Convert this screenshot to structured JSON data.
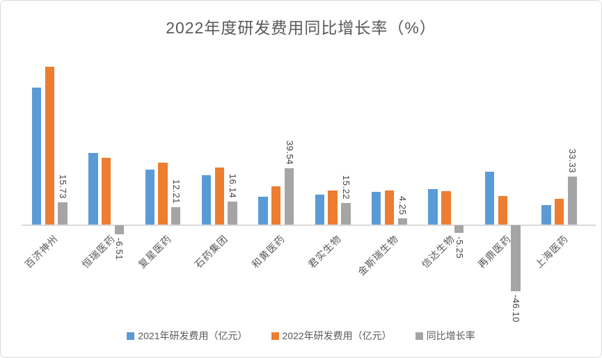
{
  "chart_data": {
    "type": "bar",
    "title": "2022年度研发费用同比增长率（%）",
    "categories": [
      "百济神州",
      "恒瑞医药",
      "复星医药",
      "石药集团",
      "和黄医药",
      "君实生物",
      "金斯瑞生物",
      "信达生物",
      "再鼎医药",
      "上海医药"
    ],
    "series": [
      {
        "name": "2021年研发费用（亿元）",
        "color": "#5B9BD5",
        "values": [
          95.4,
          50.0,
          38.3,
          34.3,
          19.3,
          20.7,
          23.0,
          24.8,
          37.0,
          13.5
        ],
        "labels_shown": false
      },
      {
        "name": "2022年研发费用（亿元）",
        "color": "#ED7D31",
        "values": [
          110.4,
          46.7,
          43.0,
          39.9,
          26.9,
          23.8,
          24.0,
          23.5,
          19.9,
          18.0
        ],
        "labels_shown": false
      },
      {
        "name": "同比增长率",
        "color": "#A5A5A5",
        "values": [
          15.73,
          -6.51,
          12.21,
          16.14,
          39.54,
          15.22,
          4.25,
          -5.25,
          -46.1,
          33.33
        ],
        "labels_shown": true,
        "data_labels": [
          "15.73",
          "-6.51",
          "12.21",
          "16.14",
          "39.54",
          "15.22",
          "4.25",
          "-5.25",
          "-46.10",
          "33.33"
        ]
      }
    ],
    "legend_position": "bottom",
    "grid": false,
    "y_axis_visible": false,
    "x_axis_label_rotation_deg": -45,
    "data_label_rotation_deg": 90,
    "ylim": [
      -50,
      115
    ]
  },
  "style": {
    "background": "#FFFFFF",
    "border_color": "#D9D9D9",
    "axis_line_color": "#D9D9D9",
    "title_color": "#595959",
    "category_label_color": "#595959",
    "data_label_color": "#404040",
    "legend_text_color": "#595959"
  }
}
